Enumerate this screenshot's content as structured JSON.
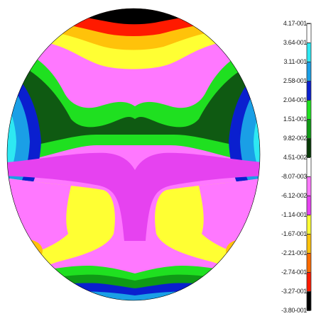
{
  "chart_data": {
    "type": "heatmap",
    "title": "",
    "xlabel": "",
    "ylabel": "",
    "colorbar": {
      "labels": [
        "4.17-001",
        "3.64-001",
        "3.11-001",
        "2.58-001",
        "2.04-001",
        "1.51-001",
        "9.82-002",
        "4.51-002",
        "-8.07-003",
        "-6.12-002",
        "-1.14-001",
        "-1.67-001",
        "-2.21-001",
        "-2.74-001",
        "-3.27-001",
        "-3.80-001"
      ],
      "colors": [
        "#ffffff",
        "#2ee8f2",
        "#1a9fe6",
        "#0a1fcf",
        "#1fe020",
        "#0f9a15",
        "#073a07",
        "#ffffff",
        "#ff78ff",
        "#e642f0",
        "#ffff33",
        "#ffc20a",
        "#ff6a00",
        "#ff1a00",
        "#000000"
      ]
    },
    "bands_top_to_bottom": [
      "black",
      "red",
      "orange",
      "yellow",
      "magenta",
      "green",
      "dark-green",
      "magenta",
      "yellow",
      "magenta",
      "green",
      "blue",
      "cyan"
    ]
  }
}
